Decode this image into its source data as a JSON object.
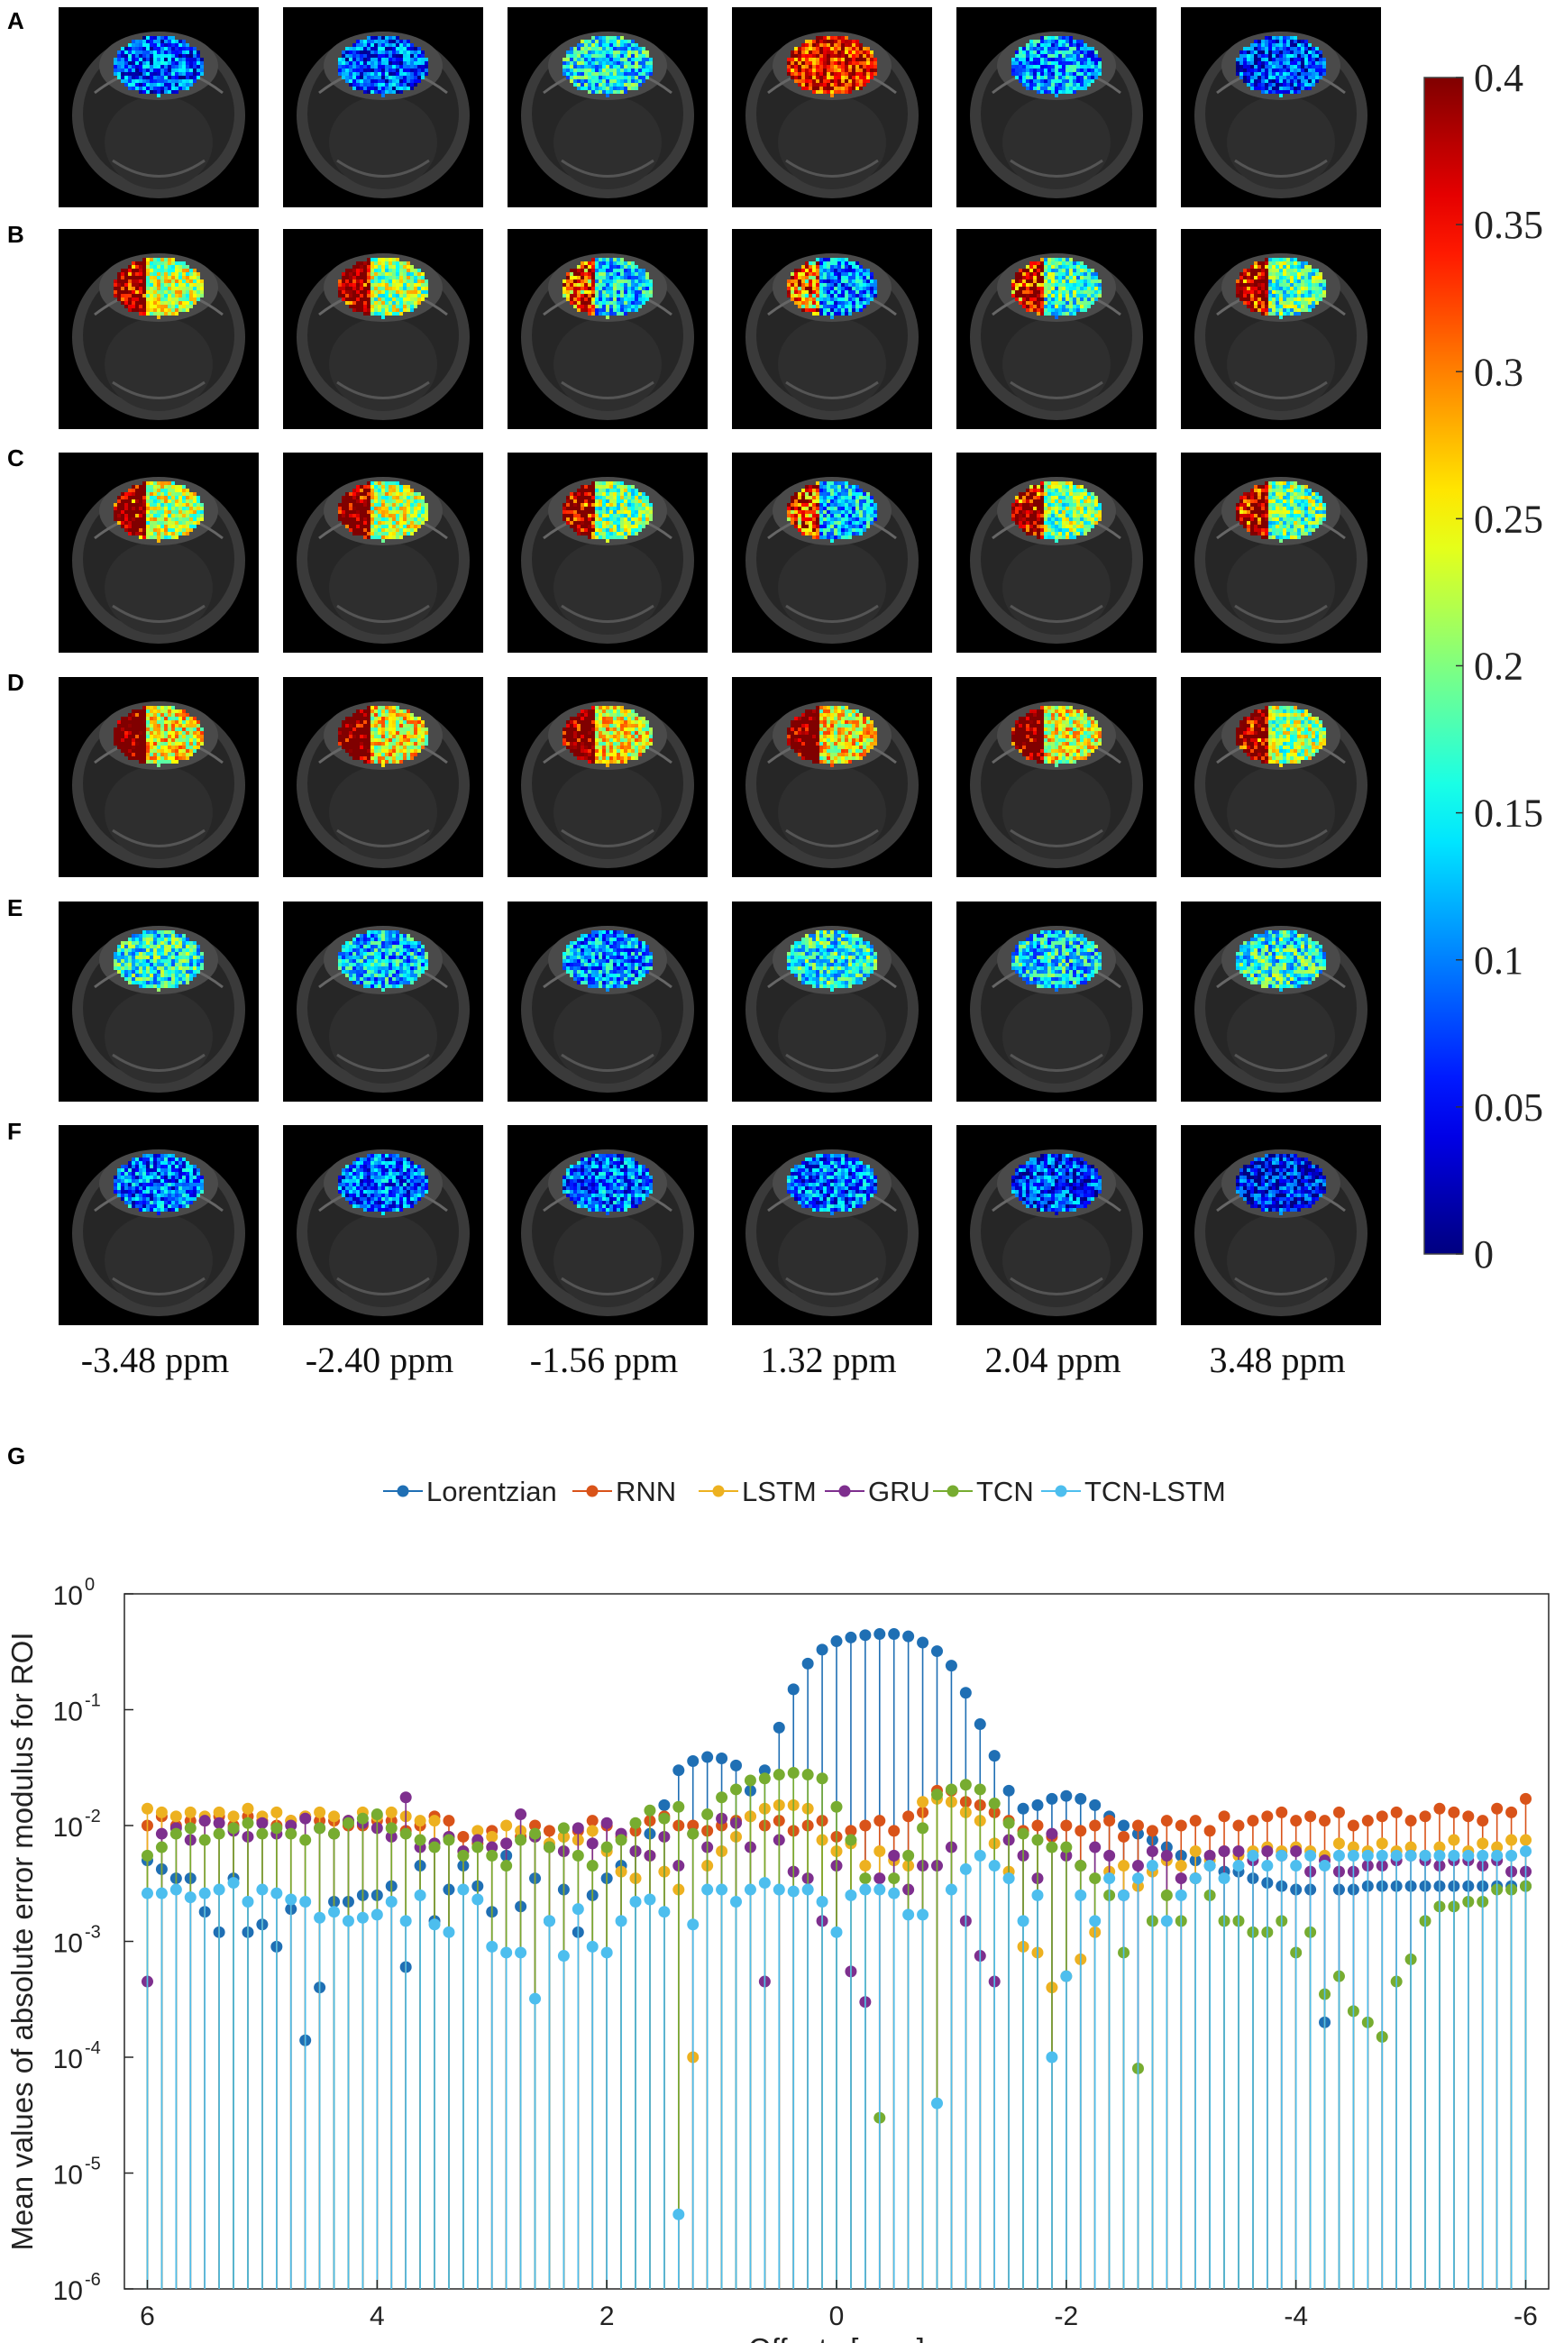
{
  "panel_labels": [
    "A",
    "B",
    "C",
    "D",
    "E",
    "F"
  ],
  "offset_labels": [
    "-3.48 ppm",
    "-2.40 ppm",
    "-1.56 ppm",
    "1.32 ppm",
    "2.04 ppm",
    "3.48 ppm"
  ],
  "panel_g_label": "G",
  "maps": {
    "description_rows": [
      "A",
      "B",
      "C",
      "D",
      "E",
      "F"
    ],
    "error_level": [
      [
        0.08,
        0.08,
        0.15,
        0.34,
        0.11,
        0.07
      ],
      [
        0.22,
        0.21,
        0.14,
        0.1,
        0.17,
        0.18
      ],
      [
        0.22,
        0.22,
        0.2,
        0.13,
        0.2,
        0.19
      ],
      [
        0.25,
        0.25,
        0.25,
        0.25,
        0.24,
        0.21
      ],
      [
        0.16,
        0.13,
        0.11,
        0.16,
        0.14,
        0.16
      ],
      [
        0.09,
        0.09,
        0.09,
        0.09,
        0.07,
        0.05
      ]
    ]
  },
  "colorbar": {
    "colormap": "jet",
    "min": 0,
    "max": 0.4,
    "tick_labels": [
      "0",
      "0.05",
      "0.1",
      "0.15",
      "0.2",
      "0.25",
      "0.3",
      "0.35",
      "0.4"
    ],
    "tick_values": [
      0,
      0.05,
      0.1,
      0.15,
      0.2,
      0.25,
      0.3,
      0.35,
      0.4
    ]
  },
  "chart_data": {
    "type": "stem",
    "yscale": "log",
    "xlabel": "Offsets [ppm]",
    "ylabel": "Mean values of absolute error modulus for ROI",
    "xlim": [
      6.2,
      -6.2
    ],
    "ylim_exp": [
      -6,
      0
    ],
    "x_ticks": [
      6,
      4,
      2,
      0,
      -2,
      -4,
      -6
    ],
    "x_tick_labels": [
      "6",
      "4",
      "2",
      "0",
      "-2",
      "-4",
      "-6"
    ],
    "y_tick_exps": [
      0,
      -1,
      -2,
      -3,
      -4,
      -5,
      -6
    ],
    "y_tick_labels": [
      "10",
      "10",
      "10",
      "10",
      "10",
      "10",
      "10"
    ],
    "y_tick_sups": [
      "0",
      "-1",
      "-2",
      "-3",
      "-4",
      "-5",
      "-6"
    ],
    "legend_position": "top-center",
    "series": [
      {
        "name": "Lorentzian",
        "color": "#1f6fb4",
        "values": [
          0.005,
          0.0042,
          0.0035,
          0.0035,
          0.0018,
          0.0012,
          0.0035,
          0.0012,
          0.0014,
          0.0009,
          0.0019,
          0.00014,
          0.0004,
          0.0022,
          0.0022,
          0.0025,
          0.0025,
          0.003,
          0.0006,
          0.0045,
          0.0015,
          0.0028,
          0.0045,
          0.003,
          0.0018,
          0.0055,
          0.002,
          0.0035,
          0.0015,
          0.0028,
          0.0012,
          0.0025,
          0.0035,
          0.0045,
          0.006,
          0.0085,
          0.015,
          0.03,
          0.036,
          0.039,
          0.038,
          0.033,
          0.02,
          0.03,
          0.07,
          0.15,
          0.25,
          0.33,
          0.39,
          0.42,
          0.44,
          0.45,
          0.45,
          0.43,
          0.38,
          0.32,
          0.24,
          0.14,
          0.075,
          0.04,
          0.02,
          0.014,
          0.015,
          0.017,
          0.018,
          0.017,
          0.015,
          0.012,
          0.01,
          0.0085,
          0.0075,
          0.0065,
          0.0055,
          0.005,
          0.0045,
          0.004,
          0.004,
          0.0035,
          0.0032,
          0.003,
          0.0028,
          0.0028,
          0.0002,
          0.0028,
          0.0028,
          0.003,
          0.003,
          0.003,
          0.003,
          0.003,
          0.003,
          0.003,
          0.003,
          0.003,
          0.003,
          0.003,
          0.003
        ]
      },
      {
        "name": "RNN",
        "color": "#d95319",
        "values": [
          0.01,
          0.012,
          0.01,
          0.011,
          0.011,
          0.012,
          0.01,
          0.012,
          0.011,
          0.01,
          0.011,
          0.012,
          0.011,
          0.011,
          0.01,
          0.01,
          0.011,
          0.011,
          0.009,
          0.01,
          0.012,
          0.011,
          0.008,
          0.007,
          0.009,
          0.007,
          0.008,
          0.01,
          0.009,
          0.008,
          0.009,
          0.011,
          0.01,
          0.008,
          0.009,
          0.011,
          0.012,
          0.01,
          0.01,
          0.009,
          0.01,
          0.011,
          0.012,
          0.01,
          0.011,
          0.009,
          0.01,
          0.011,
          0.008,
          0.009,
          0.01,
          0.011,
          0.009,
          0.012,
          0.013,
          0.02,
          0.02,
          0.016,
          0.015,
          0.013,
          0.011,
          0.009,
          0.01,
          0.008,
          0.01,
          0.009,
          0.01,
          0.011,
          0.008,
          0.01,
          0.009,
          0.011,
          0.01,
          0.011,
          0.009,
          0.012,
          0.01,
          0.011,
          0.012,
          0.013,
          0.011,
          0.012,
          0.011,
          0.013,
          0.01,
          0.011,
          0.012,
          0.013,
          0.011,
          0.012,
          0.014,
          0.013,
          0.012,
          0.011,
          0.014,
          0.013,
          0.017
        ]
      },
      {
        "name": "LSTM",
        "color": "#edb120",
        "values": [
          0.014,
          0.013,
          0.012,
          0.013,
          0.012,
          0.013,
          0.012,
          0.014,
          0.012,
          0.013,
          0.011,
          0.012,
          0.013,
          0.012,
          0.011,
          0.013,
          0.012,
          0.013,
          0.012,
          0.011,
          0.011,
          0.008,
          0.006,
          0.009,
          0.008,
          0.01,
          0.009,
          0.008,
          0.007,
          0.008,
          0.0075,
          0.009,
          0.006,
          0.004,
          0.0035,
          0.0055,
          0.004,
          0.0028,
          0.0001,
          0.0045,
          0.006,
          0.008,
          0.012,
          0.014,
          0.015,
          0.015,
          0.014,
          0.0075,
          0.006,
          0.007,
          0.0045,
          0.006,
          0.005,
          0.0045,
          0.016,
          0.017,
          0.016,
          0.013,
          0.011,
          0.007,
          0.004,
          0.0009,
          0.0008,
          0.0004,
          0.0005,
          0.0007,
          0.0012,
          0.004,
          0.0045,
          0.003,
          0.004,
          0.005,
          0.0045,
          0.006,
          0.005,
          0.006,
          0.0055,
          0.006,
          0.0065,
          0.006,
          0.0065,
          0.006,
          0.0055,
          0.007,
          0.0065,
          0.006,
          0.007,
          0.006,
          0.0065,
          0.0055,
          0.0065,
          0.0075,
          0.006,
          0.007,
          0.0065,
          0.0075,
          0.0075
        ]
      },
      {
        "name": "GRU",
        "color": "#7e2f8e",
        "values": [
          0.00045,
          0.0085,
          0.0095,
          0.0075,
          0.011,
          0.0105,
          0.009,
          0.008,
          0.0105,
          0.0085,
          0.01,
          0.0115,
          0.0095,
          0.0085,
          0.011,
          0.0105,
          0.0095,
          0.008,
          0.0175,
          0.0065,
          0.007,
          0.008,
          0.006,
          0.0075,
          0.0065,
          0.007,
          0.0125,
          0.008,
          0.0065,
          0.006,
          0.0095,
          0.007,
          0.0105,
          0.0085,
          0.006,
          0.0055,
          0.008,
          0.0045,
          0.0085,
          0.0065,
          0.0115,
          0.0105,
          0.0065,
          0.00045,
          0.0075,
          0.004,
          0.0035,
          0.0015,
          0.0045,
          0.00055,
          0.0003,
          0.0035,
          0.0055,
          0.0028,
          0.0045,
          0.0045,
          0.0065,
          0.0015,
          0.00075,
          0.00045,
          0.0075,
          0.0055,
          0.0035,
          0.0085,
          0.0055,
          0.0045,
          0.0065,
          0.0055,
          0.0025,
          0.0045,
          0.006,
          0.0055,
          0.0035,
          0.0035,
          0.0055,
          0.006,
          0.006,
          0.005,
          0.006,
          0.0055,
          0.006,
          0.004,
          0.005,
          0.004,
          0.004,
          0.0045,
          0.0045,
          0.005,
          0.0055,
          0.005,
          0.0045,
          0.005,
          0.005,
          0.0045,
          0.005,
          0.004,
          0.004
        ]
      },
      {
        "name": "TCN",
        "color": "#77ac30",
        "values": [
          0.0055,
          0.0065,
          0.0085,
          0.0095,
          0.0075,
          0.0085,
          0.0095,
          0.0105,
          0.0085,
          0.0095,
          0.0085,
          0.0075,
          0.0095,
          0.0085,
          0.0105,
          0.0115,
          0.0125,
          0.0095,
          0.0085,
          0.0075,
          0.0065,
          0.0075,
          0.0055,
          0.0065,
          0.0055,
          0.0045,
          0.0075,
          0.0085,
          0.0065,
          0.0095,
          0.0055,
          0.0045,
          0.0065,
          0.0075,
          0.0105,
          0.0135,
          0.0115,
          0.0145,
          0.0085,
          0.0125,
          0.0175,
          0.0205,
          0.0245,
          0.0255,
          0.0275,
          0.0285,
          0.0275,
          0.0255,
          0.0145,
          0.0075,
          0.0035,
          3e-05,
          0.0035,
          0.0055,
          0.0095,
          0.0185,
          0.0205,
          0.0225,
          0.0205,
          0.0155,
          0.0105,
          0.0085,
          0.0075,
          0.0065,
          0.0065,
          0.0045,
          0.0035,
          0.0025,
          0.0008,
          8e-05,
          0.0015,
          0.0025,
          0.0015,
          0.0035,
          0.0025,
          0.0015,
          0.0015,
          0.0012,
          0.0012,
          0.0015,
          0.0008,
          0.0012,
          0.00035,
          0.0005,
          0.00025,
          0.0002,
          0.00015,
          0.00045,
          0.0007,
          0.0015,
          0.002,
          0.002,
          0.0022,
          0.0022,
          0.0028,
          0.0028,
          0.003
        ]
      },
      {
        "name": "TCN-LSTM",
        "color": "#4dbeee",
        "values": [
          0.0026,
          0.0026,
          0.0028,
          0.0024,
          0.0026,
          0.0028,
          0.0032,
          0.0022,
          0.0028,
          0.0026,
          0.0023,
          0.0022,
          0.0016,
          0.0018,
          0.0015,
          0.0016,
          0.0017,
          0.0022,
          0.0015,
          0.0025,
          0.0014,
          0.0012,
          0.0028,
          0.0023,
          0.0009,
          0.0008,
          0.0008,
          0.00032,
          0.0015,
          0.00075,
          0.0019,
          0.0009,
          0.0008,
          0.0015,
          0.0022,
          0.0023,
          0.0018,
          4.4e-06,
          0.0014,
          0.0028,
          0.0028,
          0.0022,
          0.0028,
          0.0032,
          0.0028,
          0.0027,
          0.0028,
          0.0022,
          0.0012,
          0.0025,
          0.0028,
          0.0028,
          0.0026,
          0.0017,
          0.0017,
          4e-05,
          0.0028,
          0.0042,
          0.0055,
          0.0045,
          0.0035,
          0.0015,
          0.0025,
          0.0001,
          0.0005,
          0.0025,
          0.0015,
          0.0035,
          0.0025,
          0.0035,
          0.0045,
          0.0015,
          0.0025,
          0.0035,
          0.0045,
          0.0035,
          0.0045,
          0.0055,
          0.0045,
          0.0055,
          0.0045,
          0.0055,
          0.0045,
          0.0055,
          0.0055,
          0.0055,
          0.0055,
          0.0055,
          0.0055,
          0.0055,
          0.0055,
          0.0055,
          0.0055,
          0.0055,
          0.0055,
          0.0055,
          0.006
        ]
      }
    ]
  }
}
